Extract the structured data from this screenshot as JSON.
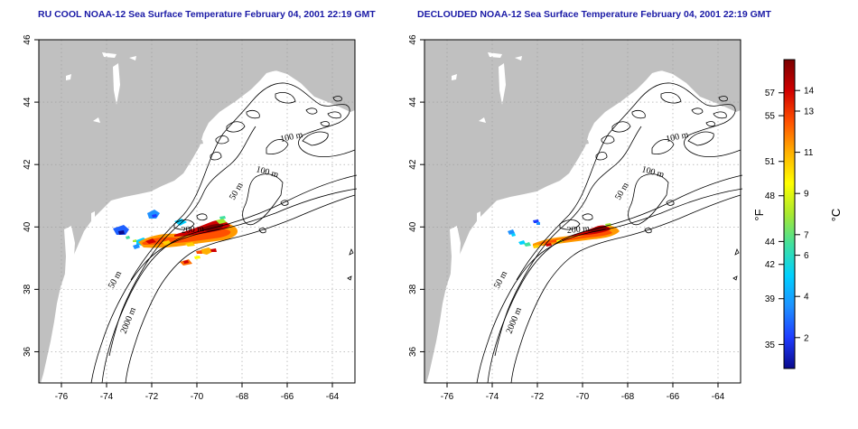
{
  "panels": [
    {
      "title": "RU COOL NOAA-12 Sea Surface Temperature February 04, 2001 22:19 GMT",
      "contour_labels": [
        "100 m",
        "100 m",
        "50 m",
        "200 m",
        "50 m",
        "2000 m"
      ]
    },
    {
      "title": "DECLOUDED NOAA-12 Sea Surface Temperature February 04, 2001 22:19 GMT",
      "contour_labels": [
        "100 m",
        "100 m",
        "50 m",
        "200 m",
        "50 m",
        "2000 m"
      ]
    }
  ],
  "axes": {
    "lon_range": [
      -77,
      -63
    ],
    "lat_range": [
      35,
      46
    ],
    "lon_ticks": [
      "-76",
      "-74",
      "-72",
      "-70",
      "-68",
      "-66",
      "-64"
    ],
    "lat_ticks": [
      "36",
      "38",
      "40",
      "42",
      "44",
      "46"
    ],
    "grid": "dotted"
  },
  "colorbar": {
    "fahrenheit_label": "°F",
    "celsius_label": "°C",
    "fahrenheit_ticks": [
      "57",
      "55",
      "51",
      "48",
      "44",
      "42",
      "39",
      "35"
    ],
    "celsius_ticks": [
      "14",
      "13",
      "11",
      "9",
      "7",
      "6",
      "4",
      "2"
    ],
    "colors": [
      "#0a0a8c",
      "#1f3cff",
      "#1e90ff",
      "#00d0ff",
      "#40e0a0",
      "#a8e830",
      "#ffff00",
      "#ffb000",
      "#ff5000",
      "#d00000",
      "#7a0000"
    ]
  },
  "colors": {
    "land": "#c0c0c0",
    "ocean": "#ffffff",
    "contour": "#000000"
  }
}
